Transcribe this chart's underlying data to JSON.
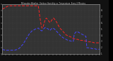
{
  "title": "Milwaukee Weather  Outdoor Humidity vs. Temperature  Every 5 Minutes",
  "bg_color": "#222222",
  "plot_bg": "#333333",
  "fig_bg": "#111111",
  "red_line_color": "#ff2222",
  "blue_line_color": "#4444ff",
  "grid_color": "#555555",
  "text_color": "#cccccc",
  "right_border_color": "#000000",
  "ylim": [
    0,
    100
  ],
  "xlim": [
    0,
    108
  ],
  "right_ytick_labels": [
    "8-",
    "7-",
    "6-",
    "5-",
    "4-",
    "3-",
    "2-",
    "1-"
  ],
  "right_ytick_positions": [
    87.5,
    75,
    62.5,
    50,
    37.5,
    25,
    12.5,
    0
  ],
  "n_xticks": 28,
  "red_x": [
    0,
    1,
    2,
    3,
    4,
    5,
    6,
    7,
    8,
    9,
    10,
    11,
    12,
    13,
    14,
    15,
    16,
    17,
    18,
    19,
    20,
    21,
    22,
    23,
    24,
    25,
    26,
    27,
    28,
    29,
    30,
    31,
    32,
    33,
    34,
    35,
    36,
    37,
    38,
    39,
    40,
    41,
    42,
    43,
    44,
    45,
    46,
    47,
    48,
    49,
    50,
    51,
    52,
    53,
    54,
    55,
    56,
    57,
    58,
    59,
    60,
    61,
    62,
    63,
    64,
    65,
    66,
    67,
    68,
    69,
    70,
    71,
    72,
    73,
    74,
    75,
    76,
    77,
    78,
    79,
    80,
    81,
    82,
    83,
    84,
    85,
    86,
    87,
    88,
    89,
    90,
    91,
    92,
    93,
    94,
    95,
    96,
    97,
    98,
    99,
    100,
    101,
    102,
    103,
    104,
    105,
    106,
    107,
    108
  ],
  "red_y": [
    90,
    91,
    92,
    93,
    94,
    95,
    96,
    97,
    97,
    97,
    97,
    97,
    97,
    97,
    97,
    97,
    97,
    97,
    97,
    97,
    97,
    97,
    97,
    97,
    97,
    97,
    97,
    97,
    97,
    97,
    97,
    97,
    97,
    97,
    97,
    97,
    97,
    97,
    97,
    97,
    97,
    85,
    72,
    60,
    52,
    52,
    58,
    65,
    70,
    72,
    70,
    68,
    65,
    63,
    65,
    68,
    70,
    72,
    70,
    68,
    65,
    62,
    58,
    55,
    52,
    50,
    48,
    46,
    44,
    42,
    40,
    38,
    37,
    36,
    35,
    35,
    34,
    33,
    32,
    31,
    30,
    30,
    30,
    29,
    29,
    28,
    28,
    27,
    27,
    27,
    26,
    26,
    26,
    25,
    25,
    25,
    24,
    24,
    24,
    23,
    23,
    23,
    22,
    22,
    22,
    22,
    22,
    22,
    22
  ],
  "blue_x": [
    0,
    1,
    2,
    3,
    4,
    5,
    6,
    7,
    8,
    9,
    10,
    11,
    12,
    13,
    14,
    15,
    16,
    17,
    18,
    19,
    20,
    21,
    22,
    23,
    24,
    25,
    26,
    27,
    28,
    29,
    30,
    31,
    32,
    33,
    34,
    35,
    36,
    37,
    38,
    39,
    40,
    41,
    42,
    43,
    44,
    45,
    46,
    47,
    48,
    49,
    50,
    51,
    52,
    53,
    54,
    55,
    56,
    57,
    58,
    59,
    60,
    61,
    62,
    63,
    64,
    65,
    66,
    67,
    68,
    69,
    70,
    71,
    72,
    73,
    74,
    75,
    76,
    77,
    78,
    79,
    80,
    81,
    82,
    83,
    84,
    85,
    86,
    87,
    88,
    89,
    90,
    91,
    92,
    93,
    94,
    95,
    96,
    97,
    98,
    99,
    100,
    101,
    102,
    103,
    104,
    105,
    106,
    107,
    108
  ],
  "blue_y": [
    8,
    8,
    8,
    7,
    7,
    7,
    7,
    7,
    7,
    7,
    7,
    7,
    7,
    7,
    7,
    8,
    8,
    9,
    10,
    11,
    13,
    15,
    17,
    19,
    22,
    25,
    28,
    31,
    34,
    37,
    40,
    42,
    44,
    46,
    47,
    48,
    49,
    50,
    51,
    51,
    52,
    50,
    48,
    47,
    46,
    48,
    50,
    52,
    53,
    52,
    51,
    50,
    48,
    47,
    49,
    51,
    52,
    51,
    50,
    48,
    46,
    44,
    42,
    40,
    38,
    36,
    35,
    33,
    32,
    31,
    30,
    29,
    28,
    27,
    27,
    26,
    26,
    25,
    25,
    25,
    40,
    42,
    44,
    45,
    44,
    43,
    42,
    41,
    40,
    39,
    38,
    37,
    36,
    35,
    12,
    12,
    12,
    11,
    11,
    11,
    10,
    10,
    10,
    10,
    9,
    9,
    9,
    9,
    9
  ]
}
